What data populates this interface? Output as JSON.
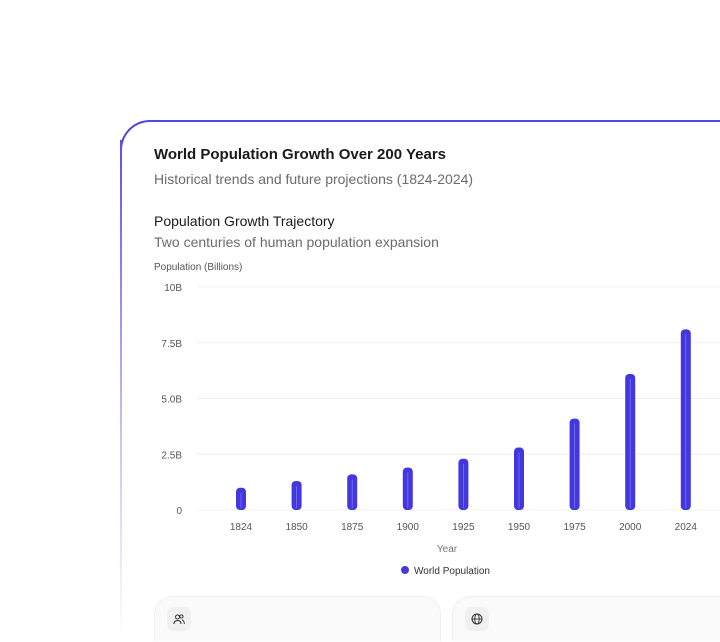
{
  "header": {
    "title": "World Population Growth Over 200 Years",
    "subtitle": "Historical trends and future projections (1824-2024)"
  },
  "section": {
    "title": "Population Growth Trajectory",
    "subtitle": "Two centuries of human population expansion"
  },
  "chart_data": {
    "type": "bar",
    "ylabel": "Population (Billions)",
    "xlabel": "Year",
    "categories": [
      "1824",
      "1850",
      "1875",
      "1900",
      "1925",
      "1950",
      "1975",
      "2000",
      "2024"
    ],
    "series": [
      {
        "name": "World Population",
        "values": [
          1.0,
          1.3,
          1.6,
          1.9,
          2.3,
          2.8,
          4.1,
          6.1,
          8.1
        ],
        "color": "#4338e0"
      }
    ],
    "ylim": [
      0,
      10
    ],
    "yticks": [
      {
        "v": 0,
        "label": "0"
      },
      {
        "v": 2.5,
        "label": "2.5B"
      },
      {
        "v": 5,
        "label": "5.0B"
      },
      {
        "v": 7.5,
        "label": "7.5B"
      },
      {
        "v": 10,
        "label": "10B"
      }
    ],
    "grid": true,
    "legend": "bottom"
  },
  "stat_cards": [
    {
      "icon": "users-icon"
    },
    {
      "icon": "globe-icon"
    }
  ]
}
